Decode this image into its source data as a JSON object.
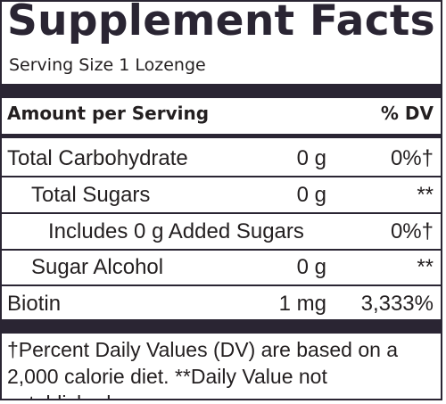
{
  "title": "Supplement Facts",
  "serving_size": "Serving Size 1 Lozenge",
  "header": {
    "amount_label": "Amount per Serving",
    "dv_label": "% DV"
  },
  "rows": [
    {
      "name": "Total Carbohydrate",
      "amount": "0 g",
      "dv": "0%†"
    },
    {
      "name": "Total Sugars",
      "amount": "0 g",
      "dv": "**"
    },
    {
      "name": "Includes 0 g Added Sugars",
      "amount": "",
      "dv": "0%†"
    },
    {
      "name": "Sugar Alcohol",
      "amount": "0 g",
      "dv": "**"
    },
    {
      "name": "Biotin",
      "amount": "1 mg",
      "dv": "3,333%"
    }
  ],
  "footnote": "†Percent Daily Values (DV) are based on a 2,000 calorie diet. **Daily Value not established."
}
